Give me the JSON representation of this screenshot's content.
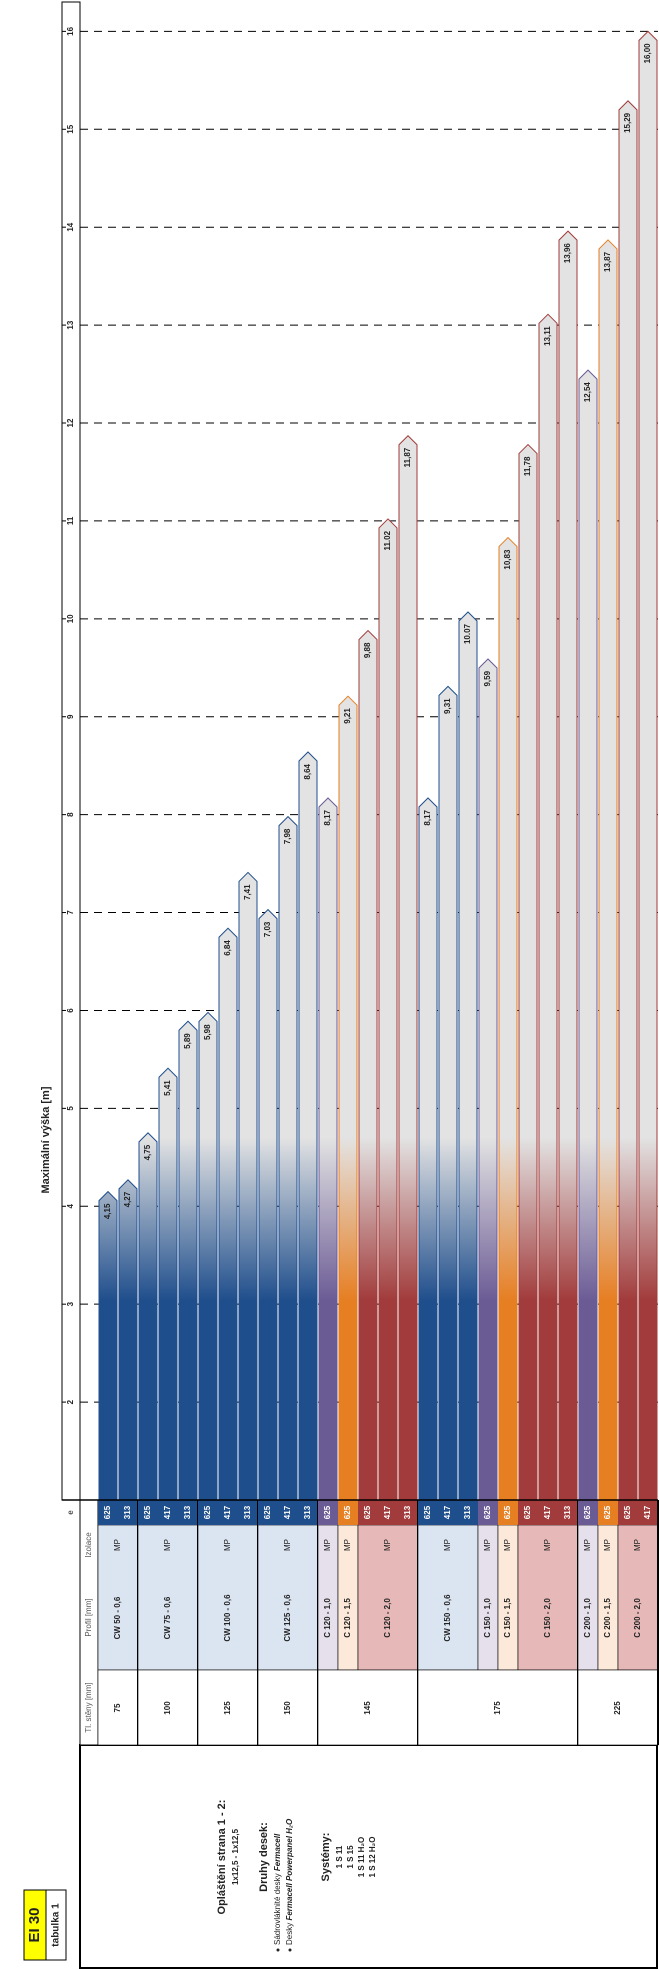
{
  "badge": "EI 30",
  "table_label": "tabulka 1",
  "description": {
    "title": "Opláštění strana 1 - 2:",
    "layers": "1x12,5 - 1x12,5",
    "boards_title": "Druhy desek:",
    "boards": [
      {
        "text": "Sádrovláknité desky ",
        "brand": "Fermacell"
      },
      {
        "text": "Desky ",
        "brand": "Fermacell Powerpanel H₂O"
      }
    ],
    "systems_title": "Systémy:",
    "systems": [
      "1 S 11",
      "1 S 15",
      "1 S 11 H₂O",
      "1 S 12 H₂O"
    ]
  },
  "chart_data": {
    "type": "bar",
    "title": "Maximální výška [m]",
    "columns": [
      "Tl. stěny [mm]",
      "Profil [mm]",
      "Izolace",
      "e"
    ],
    "xlim": [
      1,
      16.3
    ],
    "xticks": [
      2,
      3,
      4,
      5,
      6,
      7,
      8,
      9,
      10,
      11,
      12,
      13,
      14,
      15,
      16
    ],
    "grid": true,
    "groups": [
      {
        "thickness": 75,
        "profiles": [
          {
            "name": "CW 50 - 0,6",
            "insulation": "MP",
            "color": "#1f4e8c",
            "fill": "#dbe5f1",
            "e": [
              625,
              313
            ],
            "values": [
              4.15,
              4.27
            ],
            "value_labels": [
              "4,15",
              "4,27"
            ]
          }
        ]
      },
      {
        "thickness": 100,
        "profiles": [
          {
            "name": "CW 75 - 0,6",
            "insulation": "MP",
            "color": "#1f4e8c",
            "fill": "#dbe5f1",
            "e": [
              625,
              417,
              313
            ],
            "values": [
              4.75,
              5.41,
              5.89
            ],
            "value_labels": [
              "4,75",
              "5,41",
              "5,89"
            ]
          }
        ]
      },
      {
        "thickness": 125,
        "profiles": [
          {
            "name": "CW 100 - 0,6",
            "insulation": "MP",
            "color": "#1f4e8c",
            "fill": "#dbe5f1",
            "e": [
              625,
              417,
              313
            ],
            "values": [
              5.98,
              6.84,
              7.41
            ],
            "value_labels": [
              "5,98",
              "6,84",
              "7,41"
            ]
          }
        ]
      },
      {
        "thickness": 150,
        "profiles": [
          {
            "name": "CW 125 - 0,6",
            "insulation": "MP",
            "color": "#1f4e8c",
            "fill": "#dbe5f1",
            "e": [
              625,
              417,
              313
            ],
            "values": [
              7.03,
              7.98,
              8.64
            ],
            "value_labels": [
              "7,03",
              "7,98",
              "8,64"
            ]
          }
        ]
      },
      {
        "thickness": 145,
        "profiles": [
          {
            "name": "C 120 - 1,0",
            "insulation": "MP",
            "color": "#6b5b95",
            "fill": "#e5e0ec",
            "e": [
              625
            ],
            "values": [
              8.17
            ],
            "value_labels": [
              "8,17"
            ]
          },
          {
            "name": "C 120 - 1,5",
            "insulation": "MP",
            "color": "#e67e22",
            "fill": "#fde9d9",
            "e": [
              625
            ],
            "values": [
              9.21
            ],
            "value_labels": [
              "9,21"
            ]
          },
          {
            "name": "C 120 - 2,0",
            "insulation": "MP",
            "color": "#a23b3b",
            "fill": "#e6b9b8",
            "e": [
              625,
              417,
              313
            ],
            "values": [
              9.88,
              11.02,
              11.87
            ],
            "value_labels": [
              "9,88",
              "11.02",
              "11,87"
            ]
          }
        ]
      },
      {
        "thickness": 175,
        "profiles": [
          {
            "name": "CW 150 - 0,6",
            "insulation": "MP",
            "color": "#1f4e8c",
            "fill": "#dbe5f1",
            "e": [
              625,
              417,
              313
            ],
            "values": [
              8.17,
              9.31,
              10.07
            ],
            "value_labels": [
              "8,17",
              "9,31",
              "10.07"
            ]
          },
          {
            "name": "C 150 - 1,0",
            "insulation": "MP",
            "color": "#6b5b95",
            "fill": "#e5e0ec",
            "e": [
              625
            ],
            "values": [
              9.59
            ],
            "value_labels": [
              "9,59"
            ]
          },
          {
            "name": "C 150 - 1,5",
            "insulation": "MP",
            "color": "#e67e22",
            "fill": "#fde9d9",
            "e": [
              625
            ],
            "values": [
              10.83
            ],
            "value_labels": [
              "10,83"
            ]
          },
          {
            "name": "C 150 - 2,0",
            "insulation": "MP",
            "color": "#a23b3b",
            "fill": "#e6b9b8",
            "e": [
              625,
              417,
              313
            ],
            "values": [
              11.78,
              13.11,
              13.96
            ],
            "value_labels": [
              "11,78",
              "13,11",
              "13,96"
            ]
          }
        ]
      },
      {
        "thickness": 225,
        "profiles": [
          {
            "name": "C 200 - 1,0",
            "insulation": "MP",
            "color": "#6b5b95",
            "fill": "#e5e0ec",
            "e": [
              625
            ],
            "values": [
              12.54
            ],
            "value_labels": [
              "12,54"
            ]
          },
          {
            "name": "C 200 - 1,5",
            "insulation": "MP",
            "color": "#e67e22",
            "fill": "#fde9d9",
            "e": [
              625
            ],
            "values": [
              13.87
            ],
            "value_labels": [
              "13,87"
            ]
          },
          {
            "name": "C 200 - 2,0",
            "insulation": "MP",
            "color": "#a23b3b",
            "fill": "#e6b9b8",
            "e": [
              625,
              417
            ],
            "values": [
              15.29,
              16.0
            ],
            "value_labels": [
              "15,29",
              "16,00"
            ]
          }
        ]
      }
    ]
  }
}
